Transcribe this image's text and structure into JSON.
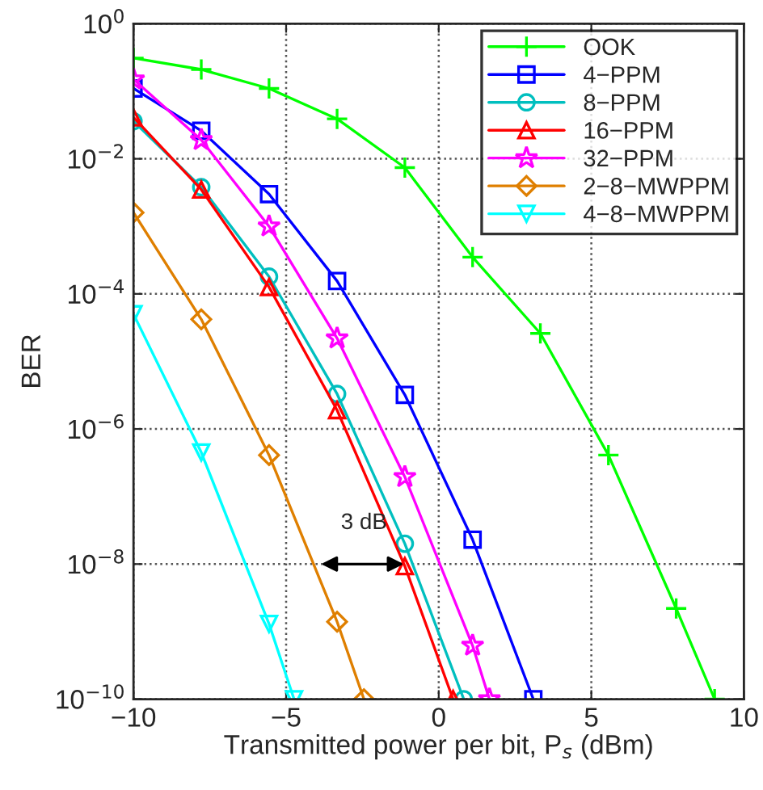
{
  "chart_data": {
    "type": "line",
    "xlabel": "Transmitted power per bit, P$_{s}$ (dBm)",
    "ylabel": "BER",
    "log": "y",
    "xlim": [
      -10,
      10
    ],
    "xticks": [
      -10,
      -5,
      0,
      5,
      10
    ],
    "ylim": [
      1e-10,
      1
    ],
    "yticks": [
      {
        "value": 1e-10,
        "label": "10$^{−10}$"
      },
      {
        "value": 1e-08,
        "label": "10$^{−8}$"
      },
      {
        "value": 1e-06,
        "label": "10$^{−6}$"
      },
      {
        "value": 0.0001,
        "label": "10$^{−4}$"
      },
      {
        "value": 0.01,
        "label": "10$^{−2}$"
      },
      {
        "value": 1,
        "label": "10$^{0}$"
      }
    ],
    "grid": true,
    "legend": "top right",
    "line_style": "solid",
    "series": [
      {
        "name": "OOK",
        "color": "#00ff00",
        "marker": "cross",
        "x": [
          -10,
          -7.78,
          -5.56,
          -3.33,
          -1.11,
          1.11,
          3.33,
          5.56,
          7.78,
          9.04
        ],
        "values": [
          0.31,
          0.21,
          0.11,
          0.039,
          0.0074,
          0.00035,
          2.6e-05,
          4.1e-07,
          2.2e-09,
          1e-10
        ]
      },
      {
        "name": "4−PPM",
        "color": "#0000ff",
        "marker": "square",
        "x": [
          -10,
          -7.78,
          -5.56,
          -3.33,
          -1.11,
          1.11,
          3.1
        ],
        "values": [
          0.11,
          0.026,
          0.003,
          0.000155,
          3.2e-06,
          2.3e-08,
          1e-10
        ]
      },
      {
        "name": "8−PPM",
        "color": "#00bfbf",
        "marker": "circle",
        "x": [
          -10,
          -7.78,
          -5.56,
          -3.33,
          -1.11,
          0.82
        ],
        "values": [
          0.036,
          0.0038,
          0.00018,
          3.3e-06,
          2e-08,
          1e-10
        ]
      },
      {
        "name": "16−PPM",
        "color": "#ff0000",
        "marker": "triangle",
        "x": [
          -10,
          -7.78,
          -5.56,
          -3.33,
          -1.11,
          0.47
        ],
        "values": [
          0.041,
          0.0035,
          0.000126,
          1.9e-06,
          9.3e-09,
          1e-10
        ]
      },
      {
        "name": "32−PPM",
        "color": "#ff00ff",
        "marker": "star",
        "x": [
          -10,
          -7.78,
          -5.56,
          -3.33,
          -1.11,
          1.11,
          1.66
        ],
        "values": [
          0.15,
          0.019,
          0.001,
          2.2e-05,
          1.95e-07,
          6.2e-10,
          1e-10
        ]
      },
      {
        "name": "2−8−MWPPM",
        "color": "#df7f00",
        "marker": "diamond",
        "x": [
          -10,
          -7.78,
          -5.56,
          -3.33,
          -2.45
        ],
        "values": [
          0.0016,
          4.2e-05,
          4.1e-07,
          1.4e-09,
          1e-10
        ]
      },
      {
        "name": "4−8−MWPPM",
        "color": "#00ffff",
        "marker": "triangle_down",
        "x": [
          -10,
          -7.78,
          -5.56,
          -4.74
        ],
        "values": [
          5e-05,
          4.5e-07,
          1.3e-09,
          1e-10
        ]
      }
    ],
    "annotations": [
      "3 dB"
    ]
  }
}
